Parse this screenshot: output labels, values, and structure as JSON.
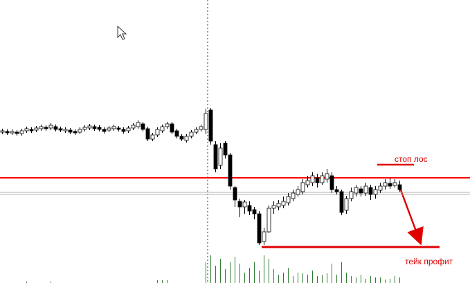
{
  "chart_data": {
    "type": "candlestick",
    "open": [
      218,
      219,
      217,
      218,
      216,
      220,
      222,
      221,
      223,
      225,
      224,
      226,
      223,
      220,
      221,
      219,
      218,
      222,
      224,
      226,
      225,
      222,
      221,
      223,
      224,
      222,
      220,
      224,
      226,
      230,
      223,
      208,
      214,
      220,
      226,
      230,
      220,
      212,
      206,
      212,
      218,
      222,
      222,
      250,
      200,
      170,
      202,
      185,
      138,
      118,
      110,
      112,
      106,
      100,
      60,
      74,
      108,
      110,
      112,
      116,
      122,
      128,
      132,
      142,
      145,
      152,
      145,
      150,
      155,
      135,
      132,
      105,
      122,
      130,
      136,
      130,
      138,
      128,
      134,
      140,
      144,
      141,
      142
    ],
    "high": [
      223,
      222,
      222,
      221,
      223,
      226,
      225,
      227,
      229,
      228,
      231,
      229,
      226,
      225,
      224,
      222,
      225,
      228,
      230,
      229,
      228,
      225,
      227,
      229,
      227,
      225,
      227,
      231,
      235,
      233,
      226,
      217,
      225,
      229,
      233,
      233,
      223,
      215,
      215,
      221,
      225,
      229,
      252,
      253,
      205,
      202,
      205,
      188,
      140,
      122,
      120,
      118,
      110,
      104,
      80,
      112,
      118,
      120,
      125,
      130,
      135,
      140,
      150,
      155,
      160,
      158,
      160,
      165,
      160,
      140,
      135,
      126,
      138,
      142,
      140,
      145,
      142,
      140,
      145,
      150,
      152,
      150,
      148
    ],
    "low": [
      215,
      214,
      214,
      213,
      213,
      217,
      217,
      218,
      220,
      220,
      221,
      219,
      218,
      217,
      215,
      214,
      215,
      219,
      221,
      220,
      219,
      216,
      218,
      220,
      219,
      216,
      217,
      221,
      223,
      219,
      205,
      205,
      211,
      217,
      223,
      215,
      209,
      205,
      203,
      209,
      215,
      219,
      215,
      200,
      160,
      165,
      180,
      135,
      110,
      95,
      100,
      98,
      92,
      55,
      55,
      72,
      100,
      105,
      108,
      112,
      118,
      125,
      128,
      138,
      140,
      138,
      142,
      145,
      130,
      128,
      98,
      100,
      118,
      125,
      125,
      126,
      120,
      122,
      130,
      135,
      136,
      138,
      132
    ],
    "close": [
      220,
      217,
      219,
      216,
      220,
      223,
      220,
      224,
      226,
      223,
      228,
      222,
      221,
      222,
      218,
      217,
      222,
      225,
      227,
      223,
      222,
      219,
      224,
      226,
      222,
      219,
      224,
      228,
      232,
      222,
      208,
      214,
      222,
      226,
      230,
      218,
      212,
      208,
      212,
      218,
      222,
      226,
      245,
      205,
      165,
      195,
      185,
      140,
      120,
      110,
      117,
      104,
      100,
      58,
      74,
      108,
      112,
      115,
      118,
      125,
      130,
      135,
      145,
      148,
      155,
      145,
      155,
      158,
      135,
      132,
      102,
      122,
      132,
      138,
      130,
      140,
      128,
      135,
      140,
      145,
      140,
      145,
      135
    ],
    "volume": [
      0,
      0,
      0,
      0,
      0,
      2,
      0,
      0,
      0,
      0,
      2,
      0,
      0,
      0,
      0,
      0,
      0,
      0,
      0,
      0,
      0,
      0,
      0,
      0,
      0,
      0,
      0,
      0,
      0,
      0,
      0,
      0,
      4,
      4,
      4,
      0,
      0,
      0,
      0,
      0,
      0,
      0,
      30,
      40,
      25,
      35,
      20,
      30,
      38,
      28,
      15,
      22,
      30,
      18,
      40,
      35,
      20,
      12,
      15,
      22,
      10,
      15,
      14,
      12,
      18,
      10,
      12,
      14,
      28,
      12,
      30,
      15,
      10,
      8,
      12,
      6,
      10,
      8,
      8,
      5,
      6,
      10,
      8
    ],
    "up_color": "#ffffff",
    "down_color": "#000000",
    "volume_color": "#2e7d32",
    "ylim": [
      0,
      409
    ],
    "y2lim": [
      0,
      409
    ],
    "hlines": [
      {
        "value": 152,
        "color": "#ff0000"
      },
      {
        "value": 131,
        "color": "#b0b0b0"
      },
      {
        "value": 128,
        "color": "#b0b0b0"
      }
    ],
    "annotations": [
      {
        "text": "стоп лос",
        "value": 171
      },
      {
        "text": "тейк профит",
        "value": 52
      }
    ]
  }
}
